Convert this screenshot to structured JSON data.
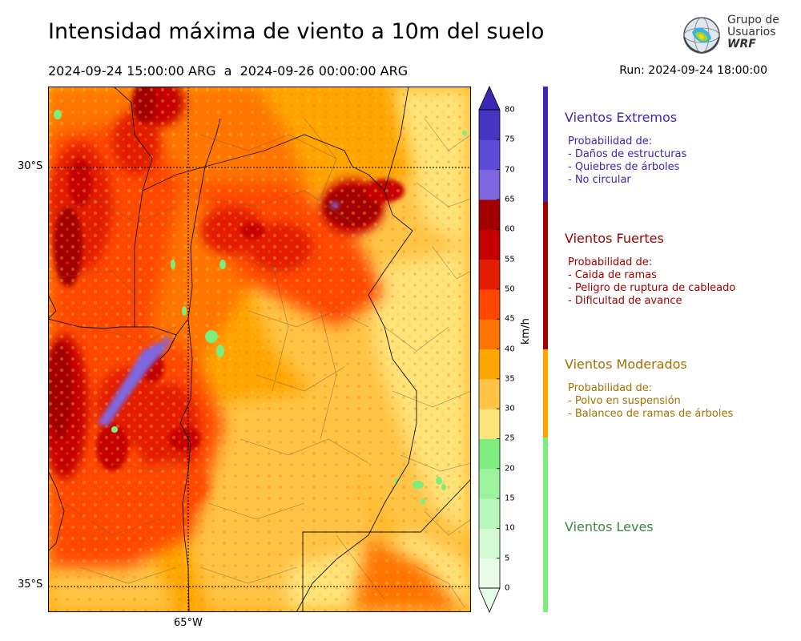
{
  "header": {
    "title": "Intensidad máxima de viento a 10m del suelo",
    "period": "2024-09-24 15:00:00 ARG  a  2024-09-26 00:00:00 ARG",
    "run": "Run: 2024-09-24 18:00:00"
  },
  "logo": {
    "line1": "Grupo de",
    "line2": "Usuarios",
    "line3": "WRF"
  },
  "map": {
    "lat_labels": [
      "30°S",
      "35°S"
    ],
    "lon_labels": [
      "65°W"
    ]
  },
  "colorbar": {
    "unit": "km/h",
    "ticks": [
      "0",
      "5",
      "10",
      "15",
      "20",
      "25",
      "30",
      "35",
      "40",
      "45",
      "50",
      "55",
      "60",
      "65",
      "70",
      "75",
      "80"
    ],
    "colors": [
      "#e8fde8",
      "#d3fad3",
      "#b9f6b9",
      "#9df29d",
      "#7ded7d",
      "#ffe47a",
      "#ffc445",
      "#ffa500",
      "#ff7400",
      "#ff4600",
      "#e31e00",
      "#c40000",
      "#a20000",
      "#7e67e1",
      "#5e4bd8",
      "#4634c2",
      "#3a27b5"
    ]
  },
  "categories": [
    {
      "title": "Vientos Extremos",
      "color": "#3a27b5",
      "lines": [
        "Probabilidad de:",
        "- Daños de estructuras",
        "- Quiebres de árboles",
        "- No circular"
      ]
    },
    {
      "title": "Vientos Fuertes",
      "color": "#a20000",
      "lines": [
        "Probabilidad de:",
        "- Caida de ramas",
        "- Peligro de ruptura de cableado",
        "- Dificultad de avance"
      ]
    },
    {
      "title": "Vientos Moderados",
      "color": "#a57000",
      "lines": [
        "Probabilidad de:",
        "- Polvo en suspensión",
        "- Balanceo de ramas de árboles"
      ]
    },
    {
      "title": "Vientos Leves",
      "color": "#3a8a3a",
      "lines": []
    }
  ]
}
